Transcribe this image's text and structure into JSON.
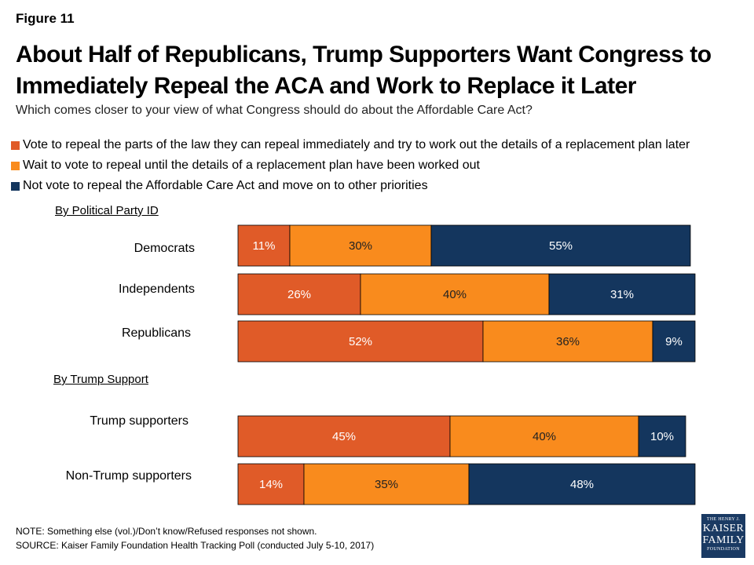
{
  "figure_label": "Figure 11",
  "title": "About Half of Republicans, Trump Supporters Want Congress to Immediately Repeal the ACA and Work to Replace it Later",
  "subtitle": "Which comes closer to your view of what Congress should do about the Affordable Care Act?",
  "colors": {
    "repeal_now": "#e05b28",
    "wait": "#f98b1d",
    "not_repeal": "#14365e"
  },
  "chart_data": {
    "type": "bar",
    "orientation": "horizontal",
    "stacked": true,
    "series": [
      {
        "name": "Vote to repeal the parts of the law they can repeal immediately and try to work out the details of a replacement plan later",
        "color": "#e05b28",
        "text_color": "#ffffff",
        "values": [
          11,
          26,
          52,
          45,
          14
        ]
      },
      {
        "name": "Wait to vote to repeal until the details of a replacement plan have been worked out",
        "color": "#f98b1d",
        "text_color": "#222222",
        "values": [
          30,
          40,
          36,
          40,
          35
        ]
      },
      {
        "name": "Not vote to repeal the Affordable Care Act and move on to other priorities",
        "color": "#14365e",
        "text_color": "#ffffff",
        "values": [
          55,
          31,
          9,
          10,
          48
        ]
      }
    ],
    "groups": [
      {
        "header": "By Political Party ID",
        "categories": [
          "Democrats",
          "Independents",
          "Republicans"
        ]
      },
      {
        "header": "By Trump Support",
        "categories": [
          "Trump supporters",
          "Non-Trump supporters"
        ]
      }
    ],
    "categories": [
      "Democrats",
      "Independents",
      "Republicans",
      "Trump supporters",
      "Non-Trump supporters"
    ],
    "value_suffix": "%",
    "xlim": [
      0,
      100
    ],
    "legend_position": "top-left"
  },
  "note": "NOTE: Something else (vol.)/Don’t know/Refused responses not shown.",
  "source": "SOURCE: Kaiser Family Foundation Health Tracking Poll (conducted July 5-10, 2017)",
  "logo": {
    "line1": "THE HENRY J.",
    "line2": "KAISER",
    "line3": "FAMILY",
    "line4": "FOUNDATION"
  }
}
